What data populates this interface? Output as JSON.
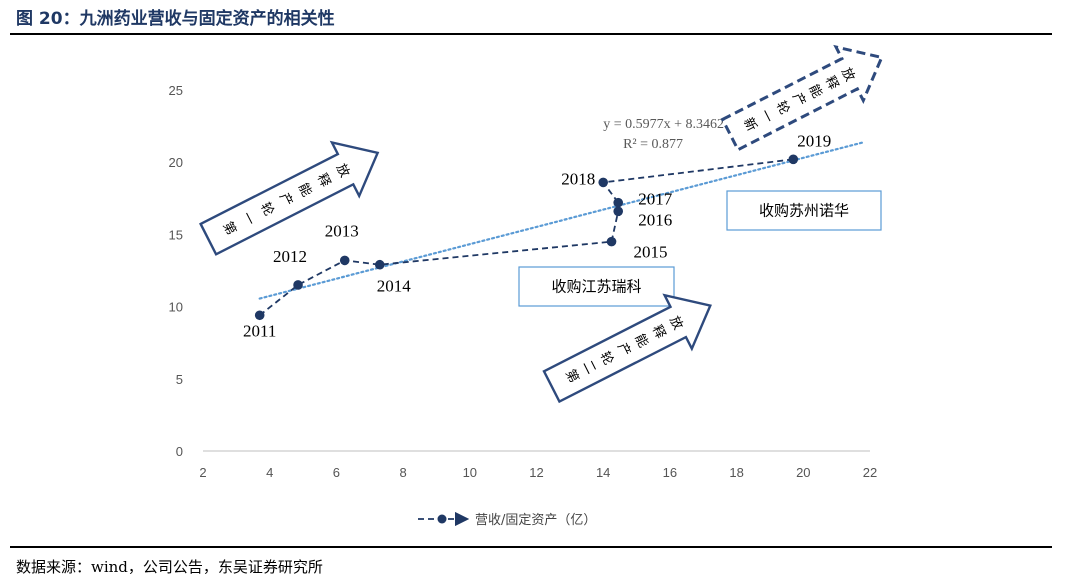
{
  "title": "图 20：九洲药业营收与固定资产的相关性",
  "source": "数据来源：wind，公司公告，东吴证券研究所",
  "chart_data": {
    "type": "scatter",
    "xlim": [
      2,
      22
    ],
    "ylim": [
      0,
      25
    ],
    "x_ticks": [
      2,
      4,
      6,
      8,
      10,
      12,
      14,
      16,
      18,
      20,
      22
    ],
    "y_ticks": [
      0,
      5,
      10,
      15,
      20,
      25
    ],
    "legend": "bottom-center",
    "grid": false,
    "series": [
      {
        "name": "营收/固定资产（亿）",
        "color": "#1f3864",
        "points": [
          {
            "x": 3.7,
            "y": 9.4,
            "label": "2011"
          },
          {
            "x": 4.85,
            "y": 11.5,
            "label": "2012"
          },
          {
            "x": 6.25,
            "y": 13.2,
            "label": "2013"
          },
          {
            "x": 7.3,
            "y": 12.9,
            "label": "2014"
          },
          {
            "x": 14.25,
            "y": 14.5,
            "label": "2015"
          },
          {
            "x": 14.45,
            "y": 16.6,
            "label": "2016"
          },
          {
            "x": 14.45,
            "y": 17.2,
            "label": "2017"
          },
          {
            "x": 14.0,
            "y": 18.6,
            "label": "2018"
          },
          {
            "x": 19.7,
            "y": 20.2,
            "label": "2019"
          }
        ]
      }
    ],
    "trendline": {
      "equation": "y = 0.5977x + 8.3462",
      "r2": "R² = 0.877",
      "slope": 0.5977,
      "intercept": 8.3462,
      "x_range": [
        3.7,
        21.8
      ],
      "color": "#5b9bd5"
    },
    "annotations": {
      "box1": "收购江苏瑞科",
      "box2": "收购苏州诺华",
      "arrow1": [
        "第",
        "一",
        "轮",
        "产",
        "能",
        "释",
        "放"
      ],
      "arrow2": [
        "第",
        "二",
        "轮",
        "产",
        "能",
        "释",
        "放"
      ],
      "arrow3": [
        "新",
        "一",
        "轮",
        "产",
        "能",
        "释",
        "放"
      ]
    }
  }
}
